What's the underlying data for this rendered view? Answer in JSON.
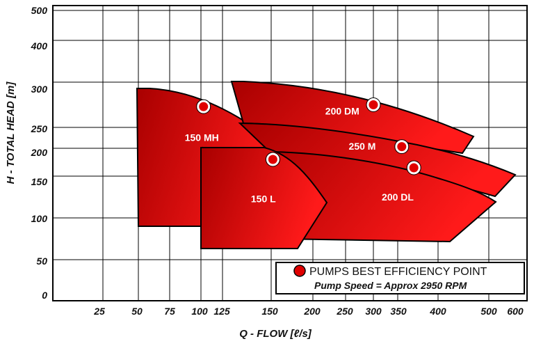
{
  "chart_data": {
    "type": "area",
    "xlabel": "Q - FLOW [ℓ/s]",
    "ylabel": "H - TOTAL HEAD [m]",
    "x_scale": "log",
    "y_scale": "log",
    "x_ticks": [
      "25",
      "50",
      "75",
      "100",
      "125",
      "150",
      "200",
      "250",
      "300",
      "350",
      "400",
      "500",
      "600"
    ],
    "y_ticks": [
      "0",
      "50",
      "100",
      "150",
      "200",
      "250",
      "300",
      "400",
      "500"
    ],
    "grid": true,
    "colors": {
      "region_dark": "#a80000",
      "region_light": "#ff1a1a",
      "outline": "#000000",
      "point": "#e00000"
    },
    "regions": [
      {
        "name": "150 MH",
        "label_at": {
          "x": 101,
          "y": 226
        },
        "bep": {
          "x": 103,
          "y": 273
        }
      },
      {
        "name": "200 DM",
        "label_at": {
          "x": 245,
          "y": 268
        },
        "bep": {
          "x": 300,
          "y": 275
        }
      },
      {
        "name": "250 M",
        "label_at": {
          "x": 280,
          "y": 205
        },
        "bep": {
          "x": 355,
          "y": 204
        }
      },
      {
        "name": "150 L",
        "label_at": {
          "x": 146,
          "y": 123
        },
        "bep": {
          "x": 152,
          "y": 180
        }
      },
      {
        "name": "200 DL",
        "label_at": {
          "x": 350,
          "y": 125
        },
        "bep": {
          "x": 370,
          "y": 165
        }
      }
    ],
    "legend": {
      "text": "PUMPS BEST EFFICIENCY POINT",
      "subtext": "Pump Speed =  Approx  2950 RPM",
      "placement": "bottom-right"
    }
  }
}
